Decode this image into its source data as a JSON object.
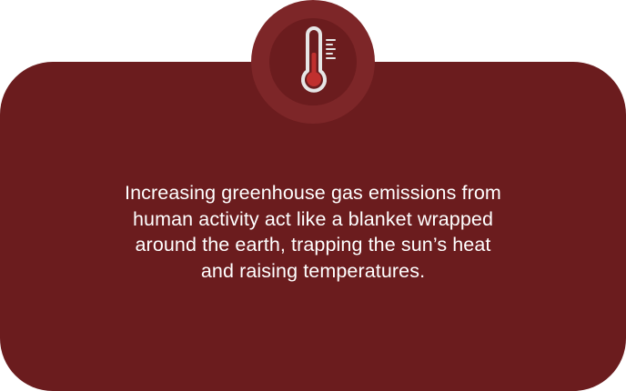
{
  "card": {
    "message": "Increasing greenhouse gas emissions from\nhuman activity act like a blanket wrapped\naround the earth, trapping the sun’s heat\nand raising temperatures."
  },
  "badge": {
    "icon": "thermometer-icon"
  },
  "colors": {
    "card_background": "#6b1c1e",
    "badge_ring": "#7d2628",
    "thermometer_fill": "#c0302e",
    "thermometer_outline": "#e6e6e6",
    "text": "#ffffff"
  }
}
